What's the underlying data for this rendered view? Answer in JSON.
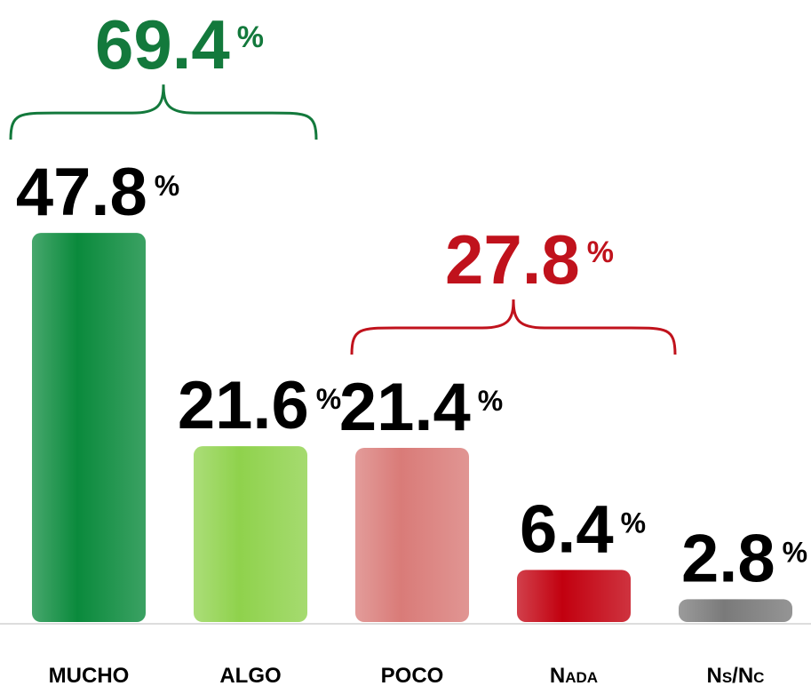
{
  "chart_data": {
    "type": "bar",
    "categories": [
      "MUCHO",
      "ALGO",
      "POCO",
      "Nada",
      "Ns/Nc"
    ],
    "values": [
      47.8,
      21.6,
      21.4,
      6.4,
      2.8
    ],
    "unit": "%",
    "colors": [
      "#0a8a3c",
      "#8fd24c",
      "#d97b78",
      "#c2000f",
      "#7a7a7a"
    ],
    "ylim": [
      0,
      50
    ],
    "annotations": [
      {
        "value": 69.4,
        "color": "#13793c",
        "categories": [
          "MUCHO",
          "ALGO"
        ]
      },
      {
        "value": 27.8,
        "color": "#c0121c",
        "categories": [
          "POCO",
          "Nada"
        ]
      }
    ]
  }
}
